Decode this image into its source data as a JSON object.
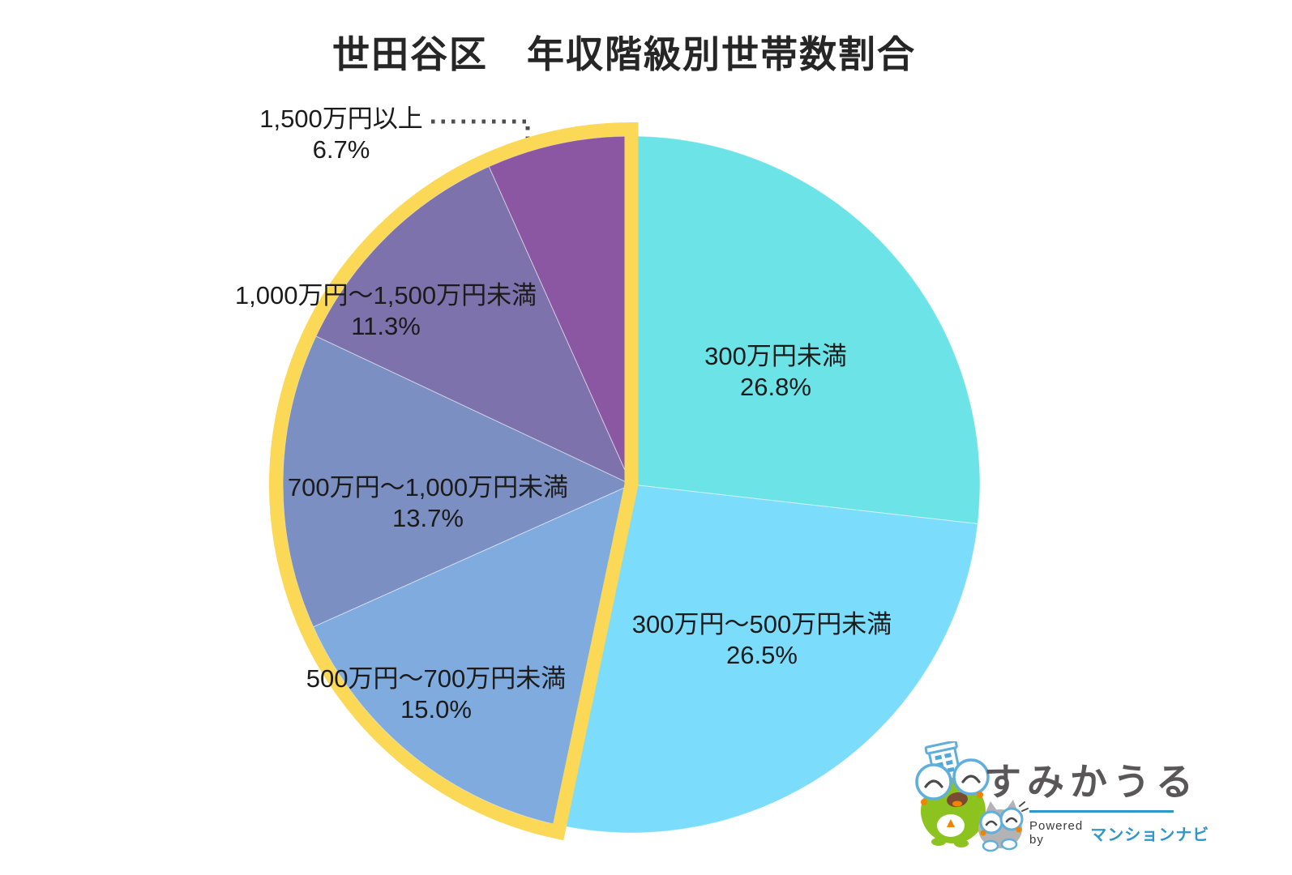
{
  "chart_data": {
    "type": "pie",
    "title": "世田谷区　年収階級別世帯数割合",
    "unit": "%",
    "direction": "clockwise",
    "start_angle_deg": 0,
    "slices": [
      {
        "label": "300万円未満",
        "value": 26.8,
        "pct_label": "26.8%",
        "color": "#6CE3E6"
      },
      {
        "label": "300万円〜500万円未満",
        "value": 26.5,
        "pct_label": "26.5%",
        "color": "#7BDDFB"
      },
      {
        "label": "500万円〜700万円未満",
        "value": 15.0,
        "pct_label": "15.0%",
        "color": "#7FABDF"
      },
      {
        "label": "700万円〜1,000万円未満",
        "value": 13.7,
        "pct_label": "13.7%",
        "color": "#7B8FC2"
      },
      {
        "label": "1,000万円〜1,500万円未満",
        "value": 11.3,
        "pct_label": "11.3%",
        "color": "#7E72AC"
      },
      {
        "label": "1,500万円以上",
        "value": 6.7,
        "pct_label": "6.7%",
        "color": "#8B57A3"
      }
    ],
    "highlight": {
      "slice_indices": [
        2,
        3,
        4,
        5
      ],
      "color": "#FBD957",
      "style": "thick outline arc around the 500万円以上 group"
    },
    "leader_line": {
      "target_slice": "1,500万円以上",
      "color": "#4E4E4E",
      "style": "dotted"
    },
    "legend_position": "labels-on-chart",
    "grid": false
  },
  "logo": {
    "brand": "すみかうる",
    "powered_by": "Powered by",
    "partner": "マンションナビ",
    "brand_color": "#595757",
    "partner_color": "#2F96C8",
    "mascots": [
      "frog-with-building",
      "gray-cat"
    ]
  }
}
